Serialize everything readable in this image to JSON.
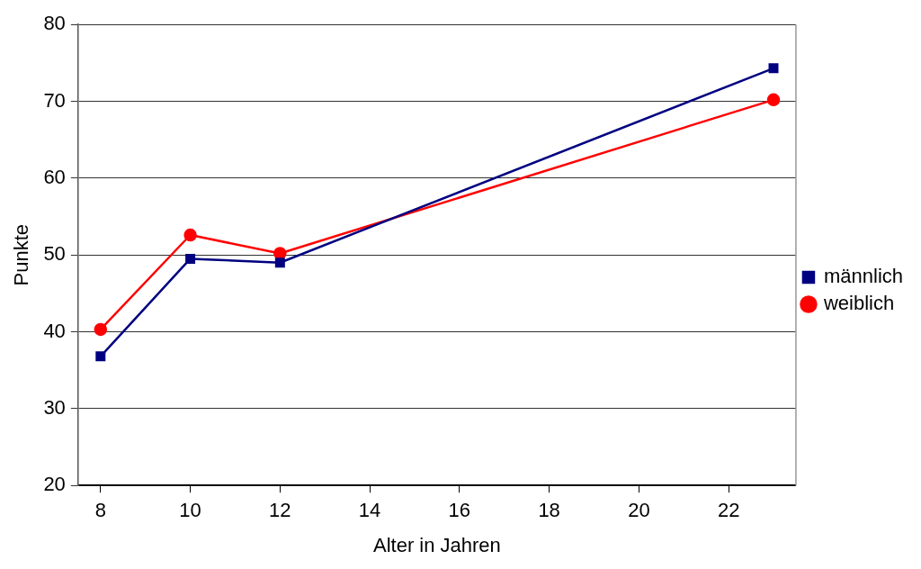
{
  "chart_data": {
    "type": "line",
    "xlabel": "Alter in Jahren",
    "ylabel": "Punkte",
    "x": [
      8,
      10,
      12,
      23
    ],
    "series": [
      {
        "name": "männlich",
        "color": "#000080",
        "marker": "square",
        "values": [
          36.8,
          49.5,
          49.0,
          74.3
        ]
      },
      {
        "name": "weiblich",
        "color": "#ff0000",
        "marker": "circle",
        "values": [
          40.3,
          52.6,
          50.2,
          70.2
        ]
      }
    ],
    "xlim": [
      7.5,
      23.5
    ],
    "xticks": [
      8,
      10,
      12,
      14,
      16,
      18,
      20,
      22
    ],
    "ylim": [
      20,
      80
    ],
    "yticks": [
      20,
      30,
      40,
      50,
      60,
      70,
      80
    ],
    "grid": "y",
    "legend": "right",
    "line_style": "solid"
  }
}
